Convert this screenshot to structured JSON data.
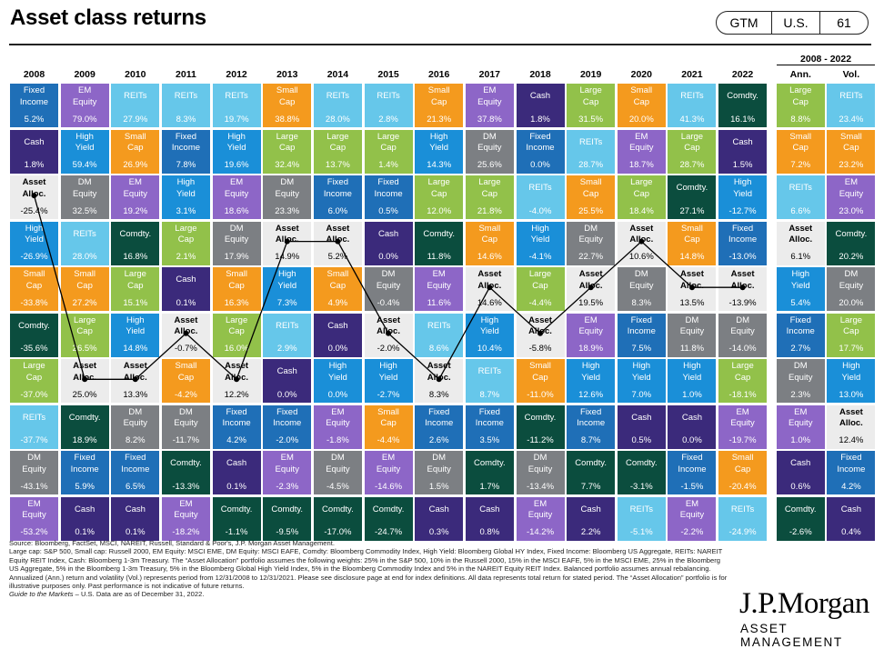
{
  "title": "Asset class returns",
  "badges": [
    "GTM",
    "U.S.",
    "61"
  ],
  "period_header": "2008 - 2022",
  "colors": {
    "Fixed Income": "#1f6fb7",
    "EM Equity": "#8d66c7",
    "REITs": "#66c7ea",
    "Small Cap": "#f49a1e",
    "Cash": "#3b2a7b",
    "Large Cap": "#92c14a",
    "Comdty.": "#0b4d3e",
    "High Yield": "#1a8fd8",
    "DM Equity": "#7c7f83",
    "Asset Alloc.": "#ececec"
  },
  "footnotes": {
    "text": "Source: Bloomberg, FactSet, MSCI, NAREIT, Russell, Standard & Poor's, J.P. Morgan Asset Management.\nLarge cap: S&P 500, Small cap: Russell 2000, EM Equity: MSCI EME, DM Equity: MSCI EAFE, Comdty: Bloomberg Commodity Index, High Yield: Bloomberg Global HY Index, Fixed Income: Bloomberg US Aggregate, REITs: NAREIT Equity REIT Index, Cash: Bloomberg 1-3m Treasury. The “Asset Allocation” portfolio assumes the following weights: 25% in the S&P 500, 10% in the Russell 2000, 15% in the MSCI EAFE, 5% in the MSCI EME, 25% in the Bloomberg US Aggregate, 5% in the Bloomberg 1-3m Treasury, 5% in the Bloomberg Global High Yield Index, 5% in the Bloomberg Commodity Index and 5% in the NAREIT Equity REIT Index. Balanced portfolio assumes annual rebalancing. Annualized (Ann.) return and volatility (Vol.) represents period from 12/31/2008 to 12/31/2021. Please see disclosure page at end for index definitions. All data represents total return for stated period. The “Asset Allocation” portfolio is for illustrative purposes only. Past performance is not indicative of future returns.",
    "guide": "Guide to the Markets",
    "guide_rest": " – U.S. Data are as of December 31, 2022."
  },
  "logo": {
    "name": "J.P.Morgan",
    "sub": "ASSET MANAGEMENT"
  },
  "chart_data": {
    "type": "table",
    "columns": [
      {
        "label": "2008",
        "cells": [
          [
            "Fixed Income",
            "5.2%"
          ],
          [
            "Cash",
            "1.8%"
          ],
          [
            "Asset Alloc.",
            "-25.4%"
          ],
          [
            "High Yield",
            "-26.9%"
          ],
          [
            "Small Cap",
            "-33.8%"
          ],
          [
            "Comdty.",
            "-35.6%"
          ],
          [
            "Large Cap",
            "-37.0%"
          ],
          [
            "REITs",
            "-37.7%"
          ],
          [
            "DM Equity",
            "-43.1%"
          ],
          [
            "EM Equity",
            "-53.2%"
          ]
        ]
      },
      {
        "label": "2009",
        "cells": [
          [
            "EM Equity",
            "79.0%"
          ],
          [
            "High Yield",
            "59.4%"
          ],
          [
            "DM Equity",
            "32.5%"
          ],
          [
            "REITs",
            "28.0%"
          ],
          [
            "Small Cap",
            "27.2%"
          ],
          [
            "Large Cap",
            "26.5%"
          ],
          [
            "Asset Alloc.",
            "25.0%"
          ],
          [
            "Comdty.",
            "18.9%"
          ],
          [
            "Fixed Income",
            "5.9%"
          ],
          [
            "Cash",
            "0.1%"
          ]
        ]
      },
      {
        "label": "2010",
        "cells": [
          [
            "REITs",
            "27.9%"
          ],
          [
            "Small Cap",
            "26.9%"
          ],
          [
            "EM Equity",
            "19.2%"
          ],
          [
            "Comdty.",
            "16.8%"
          ],
          [
            "Large Cap",
            "15.1%"
          ],
          [
            "High Yield",
            "14.8%"
          ],
          [
            "Asset Alloc.",
            "13.3%"
          ],
          [
            "DM Equity",
            "8.2%"
          ],
          [
            "Fixed Income",
            "6.5%"
          ],
          [
            "Cash",
            "0.1%"
          ]
        ]
      },
      {
        "label": "2011",
        "cells": [
          [
            "REITs",
            "8.3%"
          ],
          [
            "Fixed Income",
            "7.8%"
          ],
          [
            "High Yield",
            "3.1%"
          ],
          [
            "Large Cap",
            "2.1%"
          ],
          [
            "Cash",
            "0.1%"
          ],
          [
            "Asset Alloc.",
            "-0.7%"
          ],
          [
            "Small Cap",
            "-4.2%"
          ],
          [
            "DM Equity",
            "-11.7%"
          ],
          [
            "Comdty.",
            "-13.3%"
          ],
          [
            "EM Equity",
            "-18.2%"
          ]
        ]
      },
      {
        "label": "2012",
        "cells": [
          [
            "REITs",
            "19.7%"
          ],
          [
            "High Yield",
            "19.6%"
          ],
          [
            "EM Equity",
            "18.6%"
          ],
          [
            "DM Equity",
            "17.9%"
          ],
          [
            "Small Cap",
            "16.3%"
          ],
          [
            "Large Cap",
            "16.0%"
          ],
          [
            "Asset Alloc.",
            "12.2%"
          ],
          [
            "Fixed Income",
            "4.2%"
          ],
          [
            "Cash",
            "0.1%"
          ],
          [
            "Comdty.",
            "-1.1%"
          ]
        ]
      },
      {
        "label": "2013",
        "cells": [
          [
            "Small Cap",
            "38.8%"
          ],
          [
            "Large Cap",
            "32.4%"
          ],
          [
            "DM Equity",
            "23.3%"
          ],
          [
            "Asset Alloc.",
            "14.9%"
          ],
          [
            "High Yield",
            "7.3%"
          ],
          [
            "REITs",
            "2.9%"
          ],
          [
            "Cash",
            "0.0%"
          ],
          [
            "Fixed Income",
            "-2.0%"
          ],
          [
            "EM Equity",
            "-2.3%"
          ],
          [
            "Comdty.",
            "-9.5%"
          ]
        ]
      },
      {
        "label": "2014",
        "cells": [
          [
            "REITs",
            "28.0%"
          ],
          [
            "Large Cap",
            "13.7%"
          ],
          [
            "Fixed Income",
            "6.0%"
          ],
          [
            "Asset Alloc.",
            "5.2%"
          ],
          [
            "Small Cap",
            "4.9%"
          ],
          [
            "Cash",
            "0.0%"
          ],
          [
            "High Yield",
            "0.0%"
          ],
          [
            "EM Equity",
            "-1.8%"
          ],
          [
            "DM Equity",
            "-4.5%"
          ],
          [
            "Comdty.",
            "-17.0%"
          ]
        ]
      },
      {
        "label": "2015",
        "cells": [
          [
            "REITs",
            "2.8%"
          ],
          [
            "Large Cap",
            "1.4%"
          ],
          [
            "Fixed Income",
            "0.5%"
          ],
          [
            "Cash",
            "0.0%"
          ],
          [
            "DM Equity",
            "-0.4%"
          ],
          [
            "Asset Alloc.",
            "-2.0%"
          ],
          [
            "High Yield",
            "-2.7%"
          ],
          [
            "Small Cap",
            "-4.4%"
          ],
          [
            "EM Equity",
            "-14.6%"
          ],
          [
            "Comdty.",
            "-24.7%"
          ]
        ]
      },
      {
        "label": "2016",
        "cells": [
          [
            "Small Cap",
            "21.3%"
          ],
          [
            "High Yield",
            "14.3%"
          ],
          [
            "Large Cap",
            "12.0%"
          ],
          [
            "Comdty.",
            "11.8%"
          ],
          [
            "EM Equity",
            "11.6%"
          ],
          [
            "REITs",
            "8.6%"
          ],
          [
            "Asset Alloc.",
            "8.3%"
          ],
          [
            "Fixed Income",
            "2.6%"
          ],
          [
            "DM Equity",
            "1.5%"
          ],
          [
            "Cash",
            "0.3%"
          ]
        ]
      },
      {
        "label": "2017",
        "cells": [
          [
            "EM Equity",
            "37.8%"
          ],
          [
            "DM Equity",
            "25.6%"
          ],
          [
            "Large Cap",
            "21.8%"
          ],
          [
            "Small Cap",
            "14.6%"
          ],
          [
            "Asset Alloc.",
            "14.6%"
          ],
          [
            "High Yield",
            "10.4%"
          ],
          [
            "REITs",
            "8.7%"
          ],
          [
            "Fixed Income",
            "3.5%"
          ],
          [
            "Comdty.",
            "1.7%"
          ],
          [
            "Cash",
            "0.8%"
          ]
        ]
      },
      {
        "label": "2018",
        "cells": [
          [
            "Cash",
            "1.8%"
          ],
          [
            "Fixed Income",
            "0.0%"
          ],
          [
            "REITs",
            "-4.0%"
          ],
          [
            "High Yield",
            "-4.1%"
          ],
          [
            "Large Cap",
            "-4.4%"
          ],
          [
            "Asset Alloc.",
            "-5.8%"
          ],
          [
            "Small Cap",
            "-11.0%"
          ],
          [
            "Comdty.",
            "-11.2%"
          ],
          [
            "DM Equity",
            "-13.4%"
          ],
          [
            "EM Equity",
            "-14.2%"
          ]
        ]
      },
      {
        "label": "2019",
        "cells": [
          [
            "Large Cap",
            "31.5%"
          ],
          [
            "REITs",
            "28.7%"
          ],
          [
            "Small Cap",
            "25.5%"
          ],
          [
            "DM Equity",
            "22.7%"
          ],
          [
            "Asset Alloc.",
            "19.5%"
          ],
          [
            "EM Equity",
            "18.9%"
          ],
          [
            "High Yield",
            "12.6%"
          ],
          [
            "Fixed Income",
            "8.7%"
          ],
          [
            "Comdty.",
            "7.7%"
          ],
          [
            "Cash",
            "2.2%"
          ]
        ]
      },
      {
        "label": "2020",
        "cells": [
          [
            "Small Cap",
            "20.0%"
          ],
          [
            "EM Equity",
            "18.7%"
          ],
          [
            "Large Cap",
            "18.4%"
          ],
          [
            "Asset Alloc.",
            "10.6%"
          ],
          [
            "DM Equity",
            "8.3%"
          ],
          [
            "Fixed Income",
            "7.5%"
          ],
          [
            "High Yield",
            "7.0%"
          ],
          [
            "Cash",
            "0.5%"
          ],
          [
            "Comdty.",
            "-3.1%"
          ],
          [
            "REITs",
            "-5.1%"
          ]
        ]
      },
      {
        "label": "2021",
        "cells": [
          [
            "REITs",
            "41.3%"
          ],
          [
            "Large Cap",
            "28.7%"
          ],
          [
            "Comdty.",
            "27.1%"
          ],
          [
            "Small Cap",
            "14.8%"
          ],
          [
            "Asset Alloc.",
            "13.5%"
          ],
          [
            "DM Equity",
            "11.8%"
          ],
          [
            "High Yield",
            "1.0%"
          ],
          [
            "Cash",
            "0.0%"
          ],
          [
            "Fixed Income",
            "-1.5%"
          ],
          [
            "EM Equity",
            "-2.2%"
          ]
        ]
      },
      {
        "label": "2022",
        "cells": [
          [
            "Comdty.",
            "16.1%"
          ],
          [
            "Cash",
            "1.5%"
          ],
          [
            "High Yield",
            "-12.7%"
          ],
          [
            "Fixed Income",
            "-13.0%"
          ],
          [
            "Asset Alloc.",
            "-13.9%"
          ],
          [
            "DM Equity",
            "-14.0%"
          ],
          [
            "Large Cap",
            "-18.1%"
          ],
          [
            "EM Equity",
            "-19.7%"
          ],
          [
            "Small Cap",
            "-20.4%"
          ],
          [
            "REITs",
            "-24.9%"
          ]
        ]
      },
      {
        "label": "Ann.",
        "cells": [
          [
            "Large Cap",
            "8.8%"
          ],
          [
            "Small Cap",
            "7.2%"
          ],
          [
            "REITs",
            "6.6%"
          ],
          [
            "Asset Alloc.",
            "6.1%"
          ],
          [
            "High Yield",
            "5.4%"
          ],
          [
            "Fixed Income",
            "2.7%"
          ],
          [
            "DM Equity",
            "2.3%"
          ],
          [
            "EM Equity",
            "1.0%"
          ],
          [
            "Cash",
            "0.6%"
          ],
          [
            "Comdty.",
            "-2.6%"
          ]
        ]
      },
      {
        "label": "Vol.",
        "cells": [
          [
            "REITs",
            "23.4%"
          ],
          [
            "Small Cap",
            "23.2%"
          ],
          [
            "EM Equity",
            "23.0%"
          ],
          [
            "Comdty.",
            "20.2%"
          ],
          [
            "DM Equity",
            "20.0%"
          ],
          [
            "Large Cap",
            "17.7%"
          ],
          [
            "High Yield",
            "13.0%"
          ],
          [
            "Asset Alloc.",
            "12.4%"
          ],
          [
            "Fixed Income",
            "4.2%"
          ],
          [
            "Cash",
            "0.4%"
          ]
        ]
      }
    ]
  }
}
